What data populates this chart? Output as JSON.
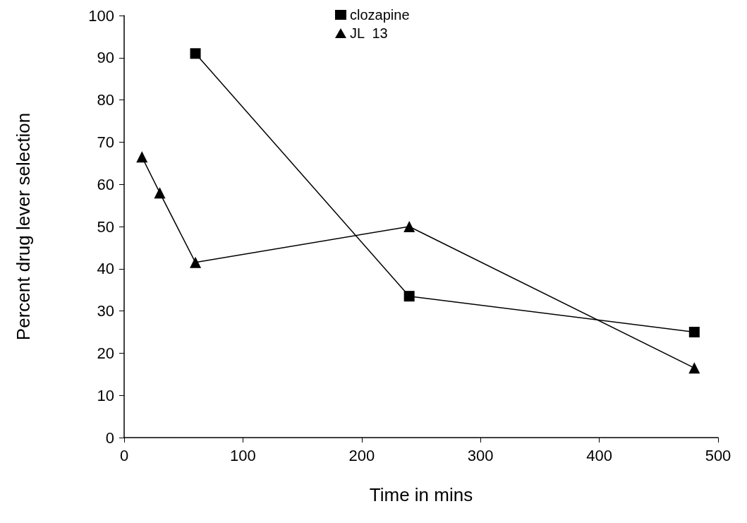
{
  "chart_data": {
    "type": "line",
    "xlabel": "Time in mins",
    "ylabel": "Percent drug lever selection",
    "xlim": [
      0,
      500
    ],
    "xticks": [
      0,
      100,
      200,
      300,
      400,
      500
    ],
    "ylim": [
      0,
      100
    ],
    "yticks": [
      0,
      10,
      20,
      30,
      40,
      50,
      60,
      70,
      80,
      90,
      100
    ],
    "grid": false,
    "legend": "top",
    "line_style": "solid",
    "series": [
      {
        "name": "clozapine",
        "color": "#000000",
        "marker": "square",
        "x": [
          60,
          240,
          480
        ],
        "values": [
          91,
          33.5,
          25
        ]
      },
      {
        "name": "JL  13",
        "color": "#000000",
        "marker": "triangle",
        "x": [
          15,
          30,
          60,
          240,
          480
        ],
        "values": [
          66.5,
          58,
          41.5,
          50,
          16.5
        ]
      }
    ]
  }
}
